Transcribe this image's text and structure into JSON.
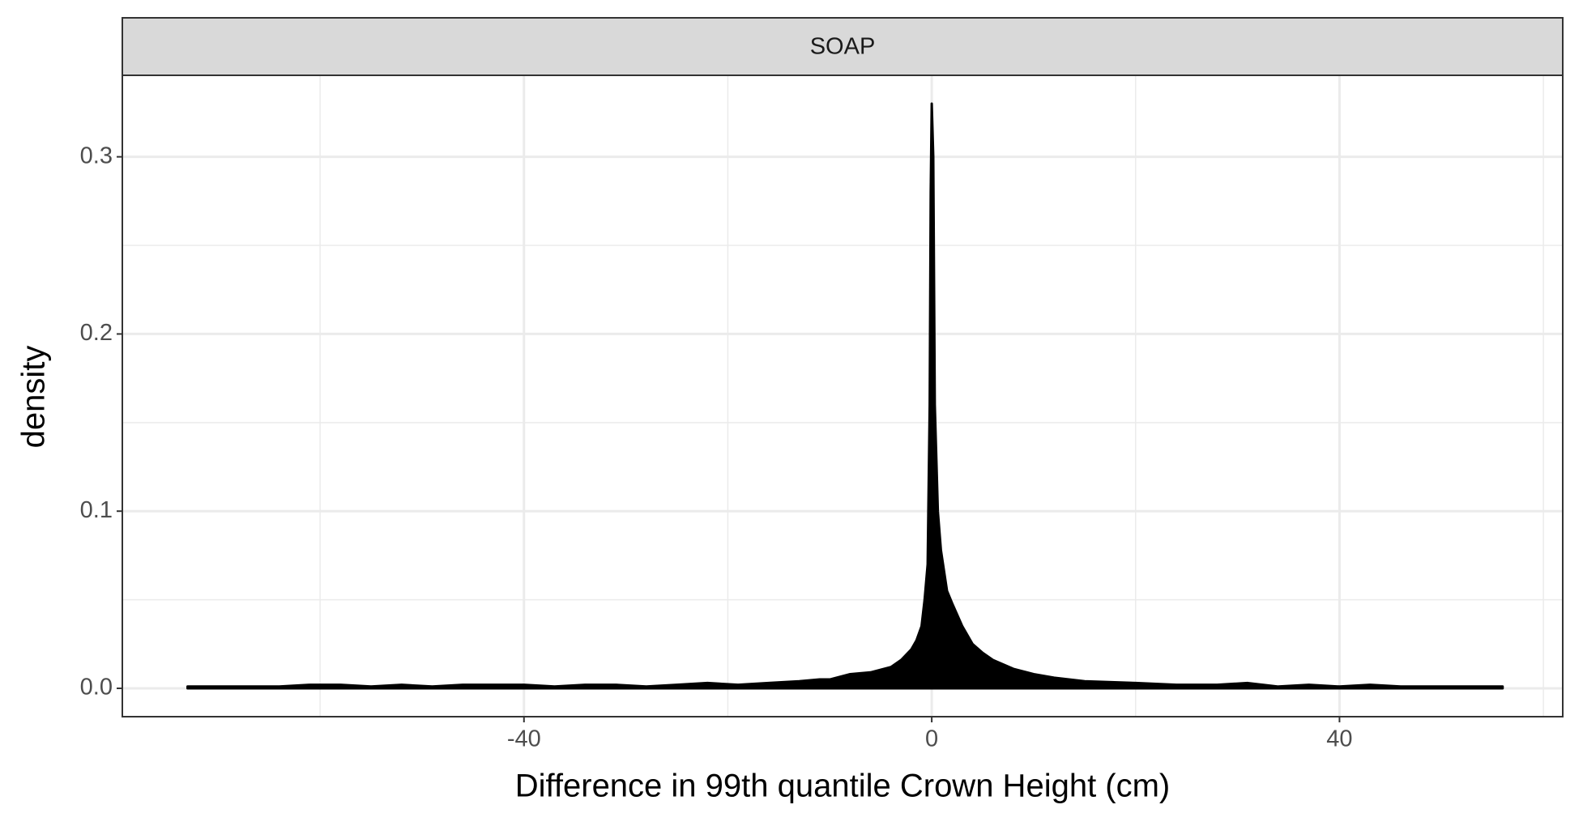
{
  "chart_data": {
    "type": "area",
    "strip": "SOAP",
    "x_label": "Difference in 99th quantile Crown Height (cm)",
    "y_label": "density",
    "x": [
      -73,
      -70,
      -67,
      -64,
      -61,
      -58,
      -55,
      -52,
      -49,
      -46,
      -43,
      -40,
      -37,
      -34,
      -31,
      -28,
      -25,
      -22,
      -19,
      -16,
      -13,
      -11,
      -10,
      -8,
      -6,
      -4,
      -3,
      -2,
      -1.5,
      -1,
      -0.7,
      -0.4,
      -0.2,
      -0.1,
      0,
      0.15,
      0.3,
      0.6,
      0.9,
      1.5,
      2,
      3,
      4,
      5,
      6,
      8,
      10,
      12,
      15,
      20,
      24,
      28,
      31,
      34,
      37,
      40,
      43,
      46,
      49,
      52,
      56
    ],
    "values": [
      0.001,
      0.001,
      0.001,
      0.001,
      0.002,
      0.002,
      0.001,
      0.002,
      0.001,
      0.002,
      0.002,
      0.002,
      0.001,
      0.002,
      0.002,
      0.001,
      0.002,
      0.003,
      0.002,
      0.003,
      0.004,
      0.005,
      0.005,
      0.008,
      0.009,
      0.012,
      0.016,
      0.022,
      0.027,
      0.035,
      0.05,
      0.07,
      0.16,
      0.28,
      0.33,
      0.3,
      0.16,
      0.1,
      0.078,
      0.055,
      0.048,
      0.035,
      0.025,
      0.02,
      0.016,
      0.011,
      0.008,
      0.006,
      0.004,
      0.003,
      0.002,
      0.002,
      0.003,
      0.001,
      0.002,
      0.001,
      0.002,
      0.001,
      0.001,
      0.001,
      0.001
    ],
    "color": "#000000",
    "xlim": [
      -79.4,
      61.9
    ],
    "ylim": [
      -0.016,
      0.346
    ],
    "xticks": [
      -40,
      0,
      40
    ],
    "yticks": [
      {
        "value": 0,
        "label": "0.0"
      },
      0.1,
      0.2,
      0.3
    ],
    "x_minor_grid": [
      -60,
      -20,
      20,
      60
    ],
    "y_minor_grid": [
      0.05,
      0.15,
      0.25
    ],
    "grid": true
  }
}
